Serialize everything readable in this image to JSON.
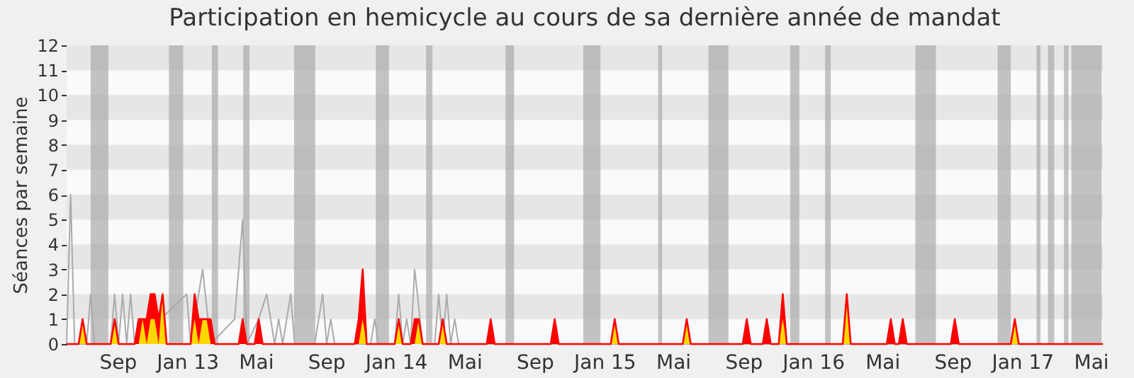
{
  "chart_data": {
    "type": "area",
    "title": "Participation en hemicycle au cours de sa dernière année de mandat",
    "ylabel": "Séances par semaine",
    "xlim": [
      "2012-06-04",
      "2017-05-22"
    ],
    "ylim": [
      0,
      12
    ],
    "yticks": [
      0,
      1,
      2,
      3,
      4,
      5,
      6,
      7,
      8,
      9,
      10,
      11,
      12
    ],
    "xticks": [
      {
        "value": "2012-09-01",
        "label": "Sep"
      },
      {
        "value": "2013-01-01",
        "label": "Jan 13"
      },
      {
        "value": "2013-05-01",
        "label": "Mai"
      },
      {
        "value": "2013-09-01",
        "label": "Sep"
      },
      {
        "value": "2014-01-01",
        "label": "Jan 14"
      },
      {
        "value": "2014-05-01",
        "label": "Mai"
      },
      {
        "value": "2014-09-01",
        "label": "Sep"
      },
      {
        "value": "2015-01-01",
        "label": "Jan 15"
      },
      {
        "value": "2015-05-01",
        "label": "Mai"
      },
      {
        "value": "2015-09-01",
        "label": "Sep"
      },
      {
        "value": "2016-01-01",
        "label": "Jan 16"
      },
      {
        "value": "2016-05-01",
        "label": "Mai"
      },
      {
        "value": "2016-09-01",
        "label": "Sep"
      },
      {
        "value": "2017-01-01",
        "label": "Jan 17"
      },
      {
        "value": "2017-05-01",
        "label": "Mai"
      }
    ],
    "bands": [
      {
        "axis": "y",
        "from": 1,
        "to": 2,
        "color": "#e6e6e6"
      },
      {
        "axis": "y",
        "from": 3,
        "to": 4,
        "color": "#e6e6e6"
      },
      {
        "axis": "y",
        "from": 5,
        "to": 6,
        "color": "#e6e6e6"
      },
      {
        "axis": "y",
        "from": 7,
        "to": 8,
        "color": "#e6e6e6"
      },
      {
        "axis": "y",
        "from": 9,
        "to": 10,
        "color": "#e6e6e6"
      },
      {
        "axis": "y",
        "from": 11,
        "to": 12,
        "color": "#e6e6e6"
      },
      {
        "axis": "x",
        "from": "2012-07-16",
        "to": "2012-08-16",
        "color": "#aaaaaa"
      },
      {
        "axis": "x",
        "from": "2012-11-30",
        "to": "2012-12-25",
        "color": "#aaaaaa"
      },
      {
        "axis": "x",
        "from": "2013-02-13",
        "to": "2013-02-24",
        "color": "#aaaaaa"
      },
      {
        "axis": "x",
        "from": "2013-04-09",
        "to": "2013-04-20",
        "color": "#aaaaaa"
      },
      {
        "axis": "x",
        "from": "2013-07-07",
        "to": "2013-08-13",
        "color": "#aaaaaa"
      },
      {
        "axis": "x",
        "from": "2013-11-27",
        "to": "2013-12-20",
        "color": "#aaaaaa"
      },
      {
        "axis": "x",
        "from": "2014-02-23",
        "to": "2014-03-06",
        "color": "#aaaaaa"
      },
      {
        "axis": "x",
        "from": "2014-07-12",
        "to": "2014-07-27",
        "color": "#aaaaaa"
      },
      {
        "axis": "x",
        "from": "2014-11-25",
        "to": "2014-12-25",
        "color": "#aaaaaa"
      },
      {
        "axis": "x",
        "from": "2015-04-05",
        "to": "2015-04-12",
        "color": "#aaaaaa"
      },
      {
        "axis": "x",
        "from": "2015-07-02",
        "to": "2015-08-06",
        "color": "#aaaaaa"
      },
      {
        "axis": "x",
        "from": "2015-11-22",
        "to": "2015-12-08",
        "color": "#aaaaaa"
      },
      {
        "axis": "x",
        "from": "2016-01-22",
        "to": "2016-02-01",
        "color": "#aaaaaa"
      },
      {
        "axis": "x",
        "from": "2016-06-28",
        "to": "2016-08-03",
        "color": "#aaaaaa"
      },
      {
        "axis": "x",
        "from": "2016-11-19",
        "to": "2016-12-12",
        "color": "#aaaaaa"
      },
      {
        "axis": "x",
        "from": "2017-01-26",
        "to": "2017-02-02",
        "color": "#aaaaaa"
      },
      {
        "axis": "x",
        "from": "2017-02-15",
        "to": "2017-02-26",
        "color": "#aaaaaa"
      },
      {
        "axis": "x",
        "from": "2017-03-15",
        "to": "2017-03-23",
        "color": "#aaaaaa"
      },
      {
        "axis": "x",
        "from": "2017-03-28",
        "to": "2017-05-20",
        "color": "#aaaaaa"
      }
    ],
    "series": [
      {
        "type": "line",
        "color": "#aaaaaa",
        "x": [
          "2012-06-04",
          "2012-06-11",
          "2012-06-18",
          "2012-07-09",
          "2012-07-16",
          "2012-07-23",
          "2012-08-20",
          "2012-08-27",
          "2012-09-03",
          "2012-09-10",
          "2012-09-17",
          "2012-09-24",
          "2012-10-01",
          "2012-12-31",
          "2013-01-07",
          "2013-01-28",
          "2013-02-11",
          "2013-03-25",
          "2013-04-08",
          "2013-04-15",
          "2013-05-06",
          "2013-05-20",
          "2013-06-03",
          "2013-06-10",
          "2013-06-17",
          "2013-07-01",
          "2013-07-08",
          "2013-08-12",
          "2013-08-26",
          "2013-09-02",
          "2013-09-09",
          "2013-09-16",
          "2013-11-18",
          "2013-11-25",
          "2013-12-02",
          "2013-12-30",
          "2014-01-06",
          "2014-01-13",
          "2014-01-20",
          "2014-01-27",
          "2014-02-03",
          "2014-02-17",
          "2014-03-10",
          "2014-03-17",
          "2014-03-24",
          "2014-03-31",
          "2014-04-07",
          "2014-04-14",
          "2014-04-21",
          "2017-05-22"
        ],
        "values": [
          0,
          6,
          0,
          0,
          2,
          0,
          0,
          2,
          0,
          2,
          0,
          2,
          0,
          2,
          0,
          3,
          0,
          1,
          5,
          0,
          1,
          2,
          0,
          1,
          0,
          2,
          0,
          0,
          2,
          0,
          1,
          0,
          0,
          1,
          0,
          0,
          2,
          0,
          1,
          0,
          3,
          0,
          0,
          2,
          0,
          2,
          0,
          1,
          0,
          0
        ]
      },
      {
        "color": "#ff0000",
        "x": [
          "2012-06-04",
          "2012-06-25",
          "2012-07-02",
          "2012-07-09",
          "2012-08-20",
          "2012-08-27",
          "2012-09-03",
          "2012-10-01",
          "2012-10-08",
          "2012-10-15",
          "2012-10-22",
          "2012-10-29",
          "2012-11-05",
          "2012-11-12",
          "2012-11-19",
          "2012-11-26",
          "2013-01-07",
          "2013-01-14",
          "2013-01-21",
          "2013-01-28",
          "2013-02-04",
          "2013-02-11",
          "2013-02-18",
          "2013-04-01",
          "2013-04-08",
          "2013-04-15",
          "2013-04-29",
          "2013-05-06",
          "2013-05-13",
          "2013-10-21",
          "2013-10-28",
          "2013-11-04",
          "2013-11-11",
          "2013-12-30",
          "2014-01-06",
          "2014-01-13",
          "2014-01-27",
          "2014-02-03",
          "2014-02-10",
          "2014-02-17",
          "2014-03-17",
          "2014-03-24",
          "2014-03-31",
          "2014-06-09",
          "2014-06-16",
          "2014-06-23",
          "2014-09-29",
          "2014-10-06",
          "2014-10-13",
          "2015-01-12",
          "2015-01-19",
          "2015-01-26",
          "2015-05-18",
          "2015-05-25",
          "2015-06-01",
          "2015-08-31",
          "2015-09-07",
          "2015-09-14",
          "2015-10-05",
          "2015-10-12",
          "2015-10-19",
          "2015-11-02",
          "2015-11-09",
          "2015-11-16",
          "2016-02-22",
          "2016-02-29",
          "2016-03-07",
          "2016-05-09",
          "2016-05-16",
          "2016-05-23",
          "2016-05-30",
          "2016-06-06",
          "2016-06-13",
          "2016-08-29",
          "2016-09-05",
          "2016-09-12",
          "2016-12-12",
          "2016-12-19",
          "2016-12-26",
          "2017-05-22"
        ],
        "values": [
          0,
          0,
          1,
          0,
          0,
          1,
          0,
          0,
          1,
          1,
          1,
          2,
          2,
          1,
          2,
          0,
          0,
          2,
          1,
          1,
          1,
          1,
          0,
          0,
          1,
          0,
          0,
          1,
          0,
          0,
          1,
          3,
          0,
          0,
          1,
          0,
          0,
          1,
          1,
          0,
          0,
          1,
          0,
          0,
          1,
          0,
          0,
          1,
          0,
          0,
          1,
          0,
          0,
          1,
          0,
          0,
          1,
          0,
          0,
          1,
          0,
          0,
          2,
          0,
          0,
          2,
          0,
          0,
          1,
          0,
          0,
          1,
          0,
          0,
          1,
          0,
          0,
          1,
          0,
          0
        ]
      },
      {
        "color": "#ffd700",
        "x": [
          "2012-06-04",
          "2012-06-25",
          "2012-07-02",
          "2012-07-09",
          "2012-08-20",
          "2012-08-27",
          "2012-09-03",
          "2012-10-08",
          "2012-10-15",
          "2012-10-22",
          "2012-10-29",
          "2012-11-05",
          "2012-11-12",
          "2012-11-19",
          "2012-11-26",
          "2013-01-07",
          "2013-01-14",
          "2013-01-21",
          "2013-01-28",
          "2013-02-04",
          "2013-02-11",
          "2013-10-28",
          "2013-11-04",
          "2013-11-11",
          "2013-12-30",
          "2014-01-06",
          "2014-01-13",
          "2014-02-03",
          "2014-02-10",
          "2014-02-17",
          "2014-03-17",
          "2014-03-24",
          "2014-03-31",
          "2015-01-12",
          "2015-01-19",
          "2015-01-26",
          "2015-05-18",
          "2015-05-25",
          "2015-06-01",
          "2015-11-02",
          "2015-11-09",
          "2015-11-16",
          "2016-02-22",
          "2016-02-29",
          "2016-03-07",
          "2016-12-12",
          "2016-12-19",
          "2016-12-26",
          "2017-05-22"
        ],
        "values": [
          0,
          0,
          1,
          0,
          0,
          1,
          0,
          0,
          1,
          0,
          1,
          1,
          0,
          2,
          0,
          0,
          1,
          0,
          1,
          1,
          0,
          0,
          1,
          0,
          0,
          1,
          0,
          0,
          1,
          0,
          0,
          1,
          0,
          0,
          1,
          0,
          0,
          1,
          0,
          0,
          1,
          0,
          0,
          2,
          0,
          0,
          1,
          0,
          0
        ]
      }
    ]
  }
}
